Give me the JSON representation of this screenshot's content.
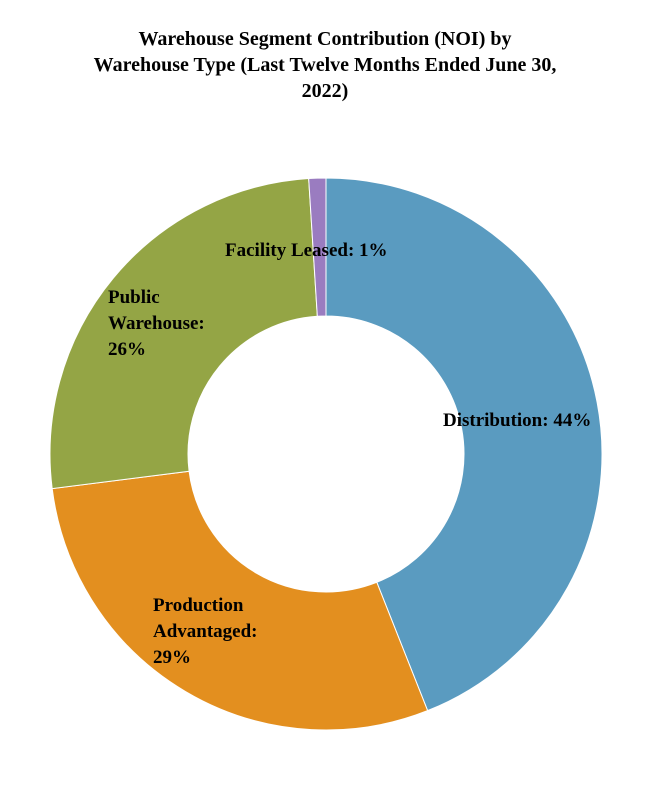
{
  "chart_data": {
    "type": "pie",
    "variant": "donut",
    "title_lines": [
      "Warehouse Segment Contribution (NOI) by",
      "Warehouse Type (Last Twelve Months Ended June 30,",
      "2022)"
    ],
    "categories": [
      "Distribution",
      "Production Advantaged",
      "Public Warehouse",
      "Facility Leased"
    ],
    "values": [
      44,
      29,
      26,
      1
    ],
    "unit": "%",
    "colors": [
      "#5a9bc0",
      "#e38f1f",
      "#94a545",
      "#9a7cc0"
    ],
    "labels": [
      {
        "lines": [
          "Distribution: 44%"
        ]
      },
      {
        "lines": [
          "Production",
          "Advantaged:",
          "29%"
        ]
      },
      {
        "lines": [
          "Public",
          "Warehouse:",
          "26%"
        ]
      },
      {
        "lines": [
          "Facility Leased: 1%"
        ]
      }
    ],
    "legend": "none"
  }
}
